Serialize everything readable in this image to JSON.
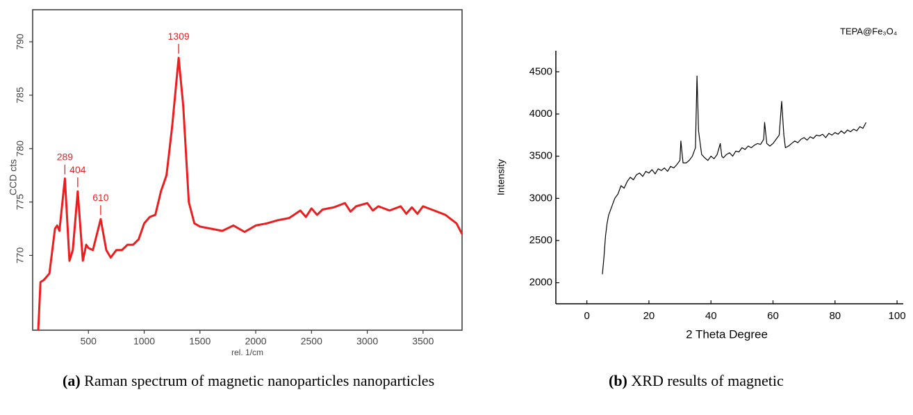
{
  "chart_data": [
    {
      "type": "line",
      "xlabel": "rel. 1/cm",
      "ylabel": "CCD cts",
      "caption_label": "(a)",
      "caption": "Raman spectrum of magnetic nanoparticles nanoparticles",
      "color": "#ee1c1c",
      "x": [
        50,
        70,
        100,
        150,
        200,
        220,
        240,
        289,
        330,
        360,
        404,
        450,
        480,
        500,
        540,
        610,
        660,
        700,
        750,
        800,
        850,
        900,
        950,
        1000,
        1050,
        1100,
        1150,
        1200,
        1250,
        1309,
        1350,
        1400,
        1450,
        1500,
        1600,
        1700,
        1800,
        1900,
        2000,
        2100,
        2200,
        2300,
        2400,
        2450,
        2500,
        2550,
        2600,
        2700,
        2800,
        2850,
        2900,
        3000,
        3050,
        3100,
        3200,
        3300,
        3350,
        3400,
        3450,
        3500,
        3600,
        3700,
        3800,
        3850
      ],
      "values": [
        763,
        767.5,
        767.7,
        768.3,
        772.5,
        772.8,
        772.3,
        777.2,
        769.5,
        770.5,
        776,
        769.5,
        771,
        770.7,
        770.5,
        773.4,
        770.5,
        769.8,
        770.5,
        770.5,
        771,
        771,
        771.5,
        773,
        773.6,
        773.8,
        776,
        777.5,
        782,
        788.5,
        784,
        775,
        773,
        772.7,
        772.5,
        772.3,
        772.8,
        772.2,
        772.8,
        773,
        773.3,
        773.5,
        774.2,
        773.6,
        774.4,
        773.8,
        774.3,
        774.5,
        774.9,
        774.1,
        774.6,
        774.9,
        774.2,
        774.6,
        774.2,
        774.6,
        773.9,
        774.5,
        773.9,
        774.6,
        774.2,
        773.8,
        773,
        772
      ],
      "annotations": [
        {
          "x": 289,
          "y": 777.2,
          "text": "289"
        },
        {
          "x": 404,
          "y": 776,
          "text": "404"
        },
        {
          "x": 610,
          "y": 773.4,
          "text": "610"
        },
        {
          "x": 1309,
          "y": 788.5,
          "text": "1309"
        }
      ],
      "xlim": [
        0,
        3850
      ],
      "ylim": [
        763,
        793
      ],
      "xticks": [
        500,
        1000,
        1500,
        2000,
        2500,
        3000,
        3500
      ],
      "yticks": [
        770,
        775,
        780,
        785,
        790
      ]
    },
    {
      "type": "line",
      "title": "TEPA@Fe₃O₄",
      "xlabel": "2 Theta Degree",
      "ylabel": "Intensity",
      "caption_label": "(b)",
      "caption": "XRD results of magnetic",
      "color": "#000000",
      "x": [
        5,
        5.5,
        6,
        6.5,
        7,
        7.5,
        8,
        9,
        10,
        11,
        12,
        13,
        14,
        15,
        16,
        17,
        18,
        19,
        20,
        21,
        22,
        23,
        24,
        25,
        26,
        27,
        28,
        29,
        30,
        30.3,
        31,
        32,
        33,
        34,
        35,
        35.5,
        36,
        37,
        38,
        39,
        40,
        41,
        42,
        43,
        43.5,
        44,
        45,
        46,
        47,
        48,
        49,
        50,
        51,
        52,
        53,
        54,
        55,
        56,
        57,
        57.3,
        58,
        59,
        60,
        61,
        62,
        62.8,
        63.5,
        64,
        65,
        66,
        67,
        68,
        69,
        70,
        71,
        72,
        73,
        74,
        75,
        76,
        77,
        78,
        79,
        80,
        81,
        82,
        83,
        84,
        85,
        86,
        87,
        88,
        89,
        90
      ],
      "values": [
        2100,
        2300,
        2550,
        2700,
        2800,
        2850,
        2900,
        3000,
        3050,
        3150,
        3120,
        3200,
        3250,
        3220,
        3280,
        3300,
        3260,
        3320,
        3300,
        3340,
        3290,
        3350,
        3330,
        3360,
        3320,
        3380,
        3360,
        3400,
        3450,
        3680,
        3420,
        3420,
        3450,
        3500,
        3600,
        4450,
        3800,
        3520,
        3480,
        3450,
        3500,
        3470,
        3520,
        3650,
        3500,
        3480,
        3520,
        3540,
        3500,
        3560,
        3550,
        3600,
        3580,
        3620,
        3600,
        3630,
        3650,
        3640,
        3700,
        3900,
        3650,
        3620,
        3650,
        3700,
        3750,
        4150,
        3750,
        3600,
        3620,
        3650,
        3680,
        3660,
        3700,
        3720,
        3690,
        3730,
        3710,
        3750,
        3740,
        3760,
        3720,
        3770,
        3750,
        3780,
        3760,
        3800,
        3770,
        3810,
        3790,
        3820,
        3800,
        3850,
        3830,
        3900
      ],
      "xlim": [
        -10,
        102
      ],
      "ylim": [
        1750,
        4750
      ],
      "xticks": [
        0,
        20,
        40,
        60,
        80,
        100
      ],
      "yticks": [
        2000,
        2500,
        3000,
        3500,
        4000,
        4500
      ]
    }
  ]
}
